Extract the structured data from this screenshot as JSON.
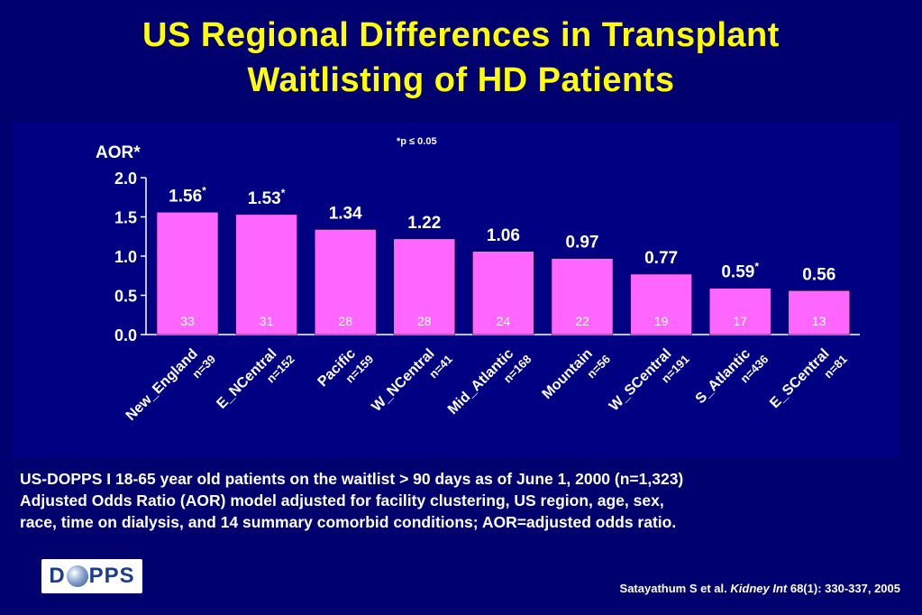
{
  "title": {
    "line1": "US Regional Differences in Transplant",
    "line2": "Waitlisting of HD Patients"
  },
  "chart_data": {
    "type": "bar",
    "ylabel": "AOR*",
    "significance_note": "*p ≤ 0.05",
    "ylim": [
      0,
      2.0
    ],
    "yticks": [
      "0.0",
      "0.5",
      "1.0",
      "1.5",
      "2.0"
    ],
    "categories": [
      "New_England",
      "E_NCentral",
      "Pacific",
      "W_NCentral",
      "Mid_Atlantic",
      "Mountain",
      "W_SCentral",
      "S_Atlantic",
      "E_SCentral"
    ],
    "n_labels": [
      "n=39",
      "n=152",
      "n=159",
      "n=41",
      "n=168",
      "n=56",
      "n=191",
      "n=436",
      "n=81"
    ],
    "values": [
      1.56,
      1.53,
      1.34,
      1.22,
      1.06,
      0.97,
      0.77,
      0.59,
      0.56
    ],
    "value_labels": [
      "1.56",
      "1.53",
      "1.34",
      "1.22",
      "1.06",
      "0.97",
      "0.77",
      "0.59",
      "0.56"
    ],
    "significant": [
      true,
      true,
      false,
      false,
      false,
      false,
      false,
      true,
      false
    ],
    "inner_labels": [
      "33",
      "31",
      "28",
      "28",
      "24",
      "22",
      "19",
      "17",
      "13"
    ],
    "bar_color": "#ff66ff",
    "grid": false
  },
  "footnote": {
    "line1": "US-DOPPS I 18-65 year old patients on the waitlist > 90 days as of June 1, 2000 (n=1,323)",
    "line2": "Adjusted Odds Ratio (AOR) model adjusted for facility clustering, US region, age, sex,",
    "line3": "race, time on dialysis, and 14 summary comorbid conditions; AOR=adjusted odds ratio."
  },
  "logo": {
    "left": "D",
    "right": "PPS"
  },
  "citation": {
    "authors": "Satayathum S et al.",
    "journal": "Kidney Int",
    "ref": "68(1): 330-337, 2005"
  },
  "colors": {
    "background": "#00006e",
    "panel": "#000082",
    "title": "#ffff00",
    "text": "#ffffff",
    "bar": "#ff66ff"
  }
}
